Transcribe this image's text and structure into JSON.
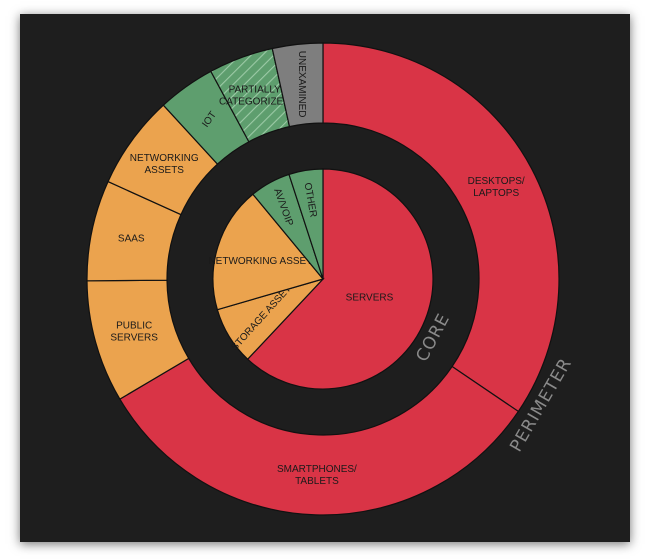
{
  "chart_data": {
    "type": "pie",
    "colors": {
      "red": "#d93446",
      "orange": "#eba34e",
      "green": "#5e9e6e",
      "gray": "#7e7e7e",
      "background": "#1e1e1e"
    },
    "rings": [
      {
        "label": "CORE",
        "slices": [
          {
            "label": "SERVERS",
            "value": 62,
            "color": "red"
          },
          {
            "label": "STORAGE ASSETS",
            "value": 8.5,
            "color": "orange"
          },
          {
            "label": "NETWORKING ASSETS",
            "value": 18.5,
            "color": "orange"
          },
          {
            "label": "AV/VOIP",
            "value": 6,
            "color": "green"
          },
          {
            "label": "OTHER",
            "value": 5,
            "color": "green"
          }
        ]
      },
      {
        "label": "PERIMETER",
        "slices": [
          {
            "label": "DESKTOPS/\nLAPTOPS",
            "value": 35,
            "color": "red"
          },
          {
            "label": "SMARTPHONES/\nTABLETS",
            "value": 32.5,
            "color": "red"
          },
          {
            "label": "PUBLIC\nSERVERS",
            "value": 8.5,
            "color": "orange"
          },
          {
            "label": "SAAS",
            "value": 7,
            "color": "orange"
          },
          {
            "label": "NETWORKING\nASSETS",
            "value": 6.5,
            "color": "orange"
          },
          {
            "label": "IOT",
            "value": 4,
            "color": "green"
          },
          {
            "label": "PARTIALLY\nCATEGORIZED",
            "value": 4.5,
            "color": "green",
            "hatched": true
          },
          {
            "label": "UNEXAMINED",
            "value": 3.5,
            "color": "gray"
          }
        ]
      }
    ]
  }
}
